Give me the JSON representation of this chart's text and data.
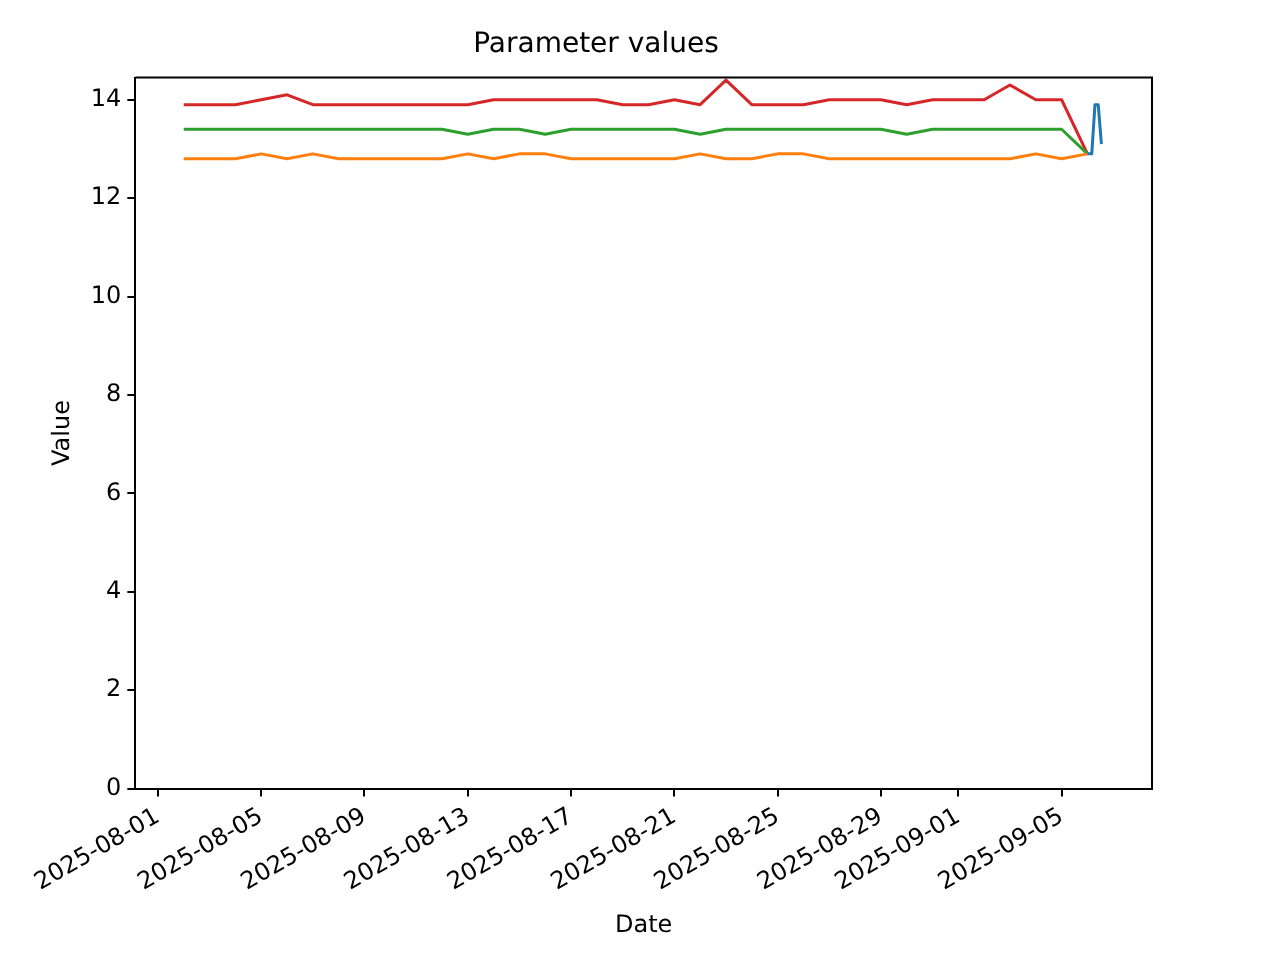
{
  "chart_data": {
    "type": "line",
    "title": "Parameter values",
    "xlabel": "Date",
    "ylabel": "Value",
    "xlim": [
      "2025-07-31T03:00",
      "2025-09-08T12:00"
    ],
    "xticks": [
      "2025-08-01",
      "2025-08-05",
      "2025-08-09",
      "2025-08-13",
      "2025-08-17",
      "2025-08-21",
      "2025-08-25",
      "2025-08-29",
      "2025-09-01",
      "2025-09-05"
    ],
    "ylim": [
      0,
      14.45
    ],
    "yticks": [
      0,
      2,
      4,
      6,
      8,
      10,
      12,
      14
    ],
    "grid": false,
    "legend": false,
    "marker": "none",
    "line_style": "solid",
    "series": [
      {
        "color": "#1f77b4",
        "x": [
          "2025-09-06T00:00",
          "2025-09-06T04:00",
          "2025-09-06T07:00",
          "2025-09-06T10:00",
          "2025-09-06T13:00"
        ],
        "values": [
          12.9,
          12.9,
          13.9,
          13.9,
          13.1
        ]
      },
      {
        "color": "#ff7f0e",
        "x": [
          "2025-08-02",
          "2025-08-03",
          "2025-08-04",
          "2025-08-05",
          "2025-08-06",
          "2025-08-07",
          "2025-08-08",
          "2025-08-09",
          "2025-08-10",
          "2025-08-11",
          "2025-08-12",
          "2025-08-13",
          "2025-08-14",
          "2025-08-15",
          "2025-08-16",
          "2025-08-17",
          "2025-08-18",
          "2025-08-19",
          "2025-08-20",
          "2025-08-21",
          "2025-08-22",
          "2025-08-23",
          "2025-08-24",
          "2025-08-25",
          "2025-08-26",
          "2025-08-27",
          "2025-08-28",
          "2025-08-29",
          "2025-08-30",
          "2025-08-31",
          "2025-09-01",
          "2025-09-02",
          "2025-09-03",
          "2025-09-04",
          "2025-09-05",
          "2025-09-06"
        ],
        "values": [
          12.8,
          12.8,
          12.8,
          12.9,
          12.8,
          12.9,
          12.8,
          12.8,
          12.8,
          12.8,
          12.8,
          12.9,
          12.8,
          12.9,
          12.9,
          12.8,
          12.8,
          12.8,
          12.8,
          12.8,
          12.9,
          12.8,
          12.8,
          12.9,
          12.9,
          12.8,
          12.8,
          12.8,
          12.8,
          12.8,
          12.8,
          12.8,
          12.8,
          12.9,
          12.8,
          12.9
        ]
      },
      {
        "color": "#2ca02c",
        "x": [
          "2025-08-02",
          "2025-08-03",
          "2025-08-04",
          "2025-08-05",
          "2025-08-06",
          "2025-08-07",
          "2025-08-08",
          "2025-08-09",
          "2025-08-10",
          "2025-08-11",
          "2025-08-12",
          "2025-08-13",
          "2025-08-14",
          "2025-08-15",
          "2025-08-16",
          "2025-08-17",
          "2025-08-18",
          "2025-08-19",
          "2025-08-20",
          "2025-08-21",
          "2025-08-22",
          "2025-08-23",
          "2025-08-24",
          "2025-08-25",
          "2025-08-26",
          "2025-08-27",
          "2025-08-28",
          "2025-08-29",
          "2025-08-30",
          "2025-08-31",
          "2025-09-01",
          "2025-09-02",
          "2025-09-03",
          "2025-09-04",
          "2025-09-05",
          "2025-09-06"
        ],
        "values": [
          13.4,
          13.4,
          13.4,
          13.4,
          13.4,
          13.4,
          13.4,
          13.4,
          13.4,
          13.4,
          13.4,
          13.3,
          13.4,
          13.4,
          13.3,
          13.4,
          13.4,
          13.4,
          13.4,
          13.4,
          13.3,
          13.4,
          13.4,
          13.4,
          13.4,
          13.4,
          13.4,
          13.4,
          13.3,
          13.4,
          13.4,
          13.4,
          13.4,
          13.4,
          13.4,
          12.9
        ]
      },
      {
        "color": "#d62728",
        "x": [
          "2025-08-02",
          "2025-08-03",
          "2025-08-04",
          "2025-08-05",
          "2025-08-06",
          "2025-08-07",
          "2025-08-08",
          "2025-08-09",
          "2025-08-10",
          "2025-08-11",
          "2025-08-12",
          "2025-08-13",
          "2025-08-14",
          "2025-08-15",
          "2025-08-16",
          "2025-08-17",
          "2025-08-18",
          "2025-08-19",
          "2025-08-20",
          "2025-08-21",
          "2025-08-22",
          "2025-08-23",
          "2025-08-24",
          "2025-08-25",
          "2025-08-26",
          "2025-08-27",
          "2025-08-28",
          "2025-08-29",
          "2025-08-30",
          "2025-08-31",
          "2025-09-01",
          "2025-09-02",
          "2025-09-03",
          "2025-09-04",
          "2025-09-05",
          "2025-09-06"
        ],
        "values": [
          13.9,
          13.9,
          13.9,
          14.0,
          14.1,
          13.9,
          13.9,
          13.9,
          13.9,
          13.9,
          13.9,
          13.9,
          14.0,
          14.0,
          14.0,
          14.0,
          14.0,
          13.9,
          13.9,
          14.0,
          13.9,
          14.4,
          13.9,
          13.9,
          13.9,
          14.0,
          14.0,
          14.0,
          13.9,
          14.0,
          14.0,
          14.0,
          14.3,
          14.0,
          14.0,
          12.9
        ]
      }
    ]
  }
}
